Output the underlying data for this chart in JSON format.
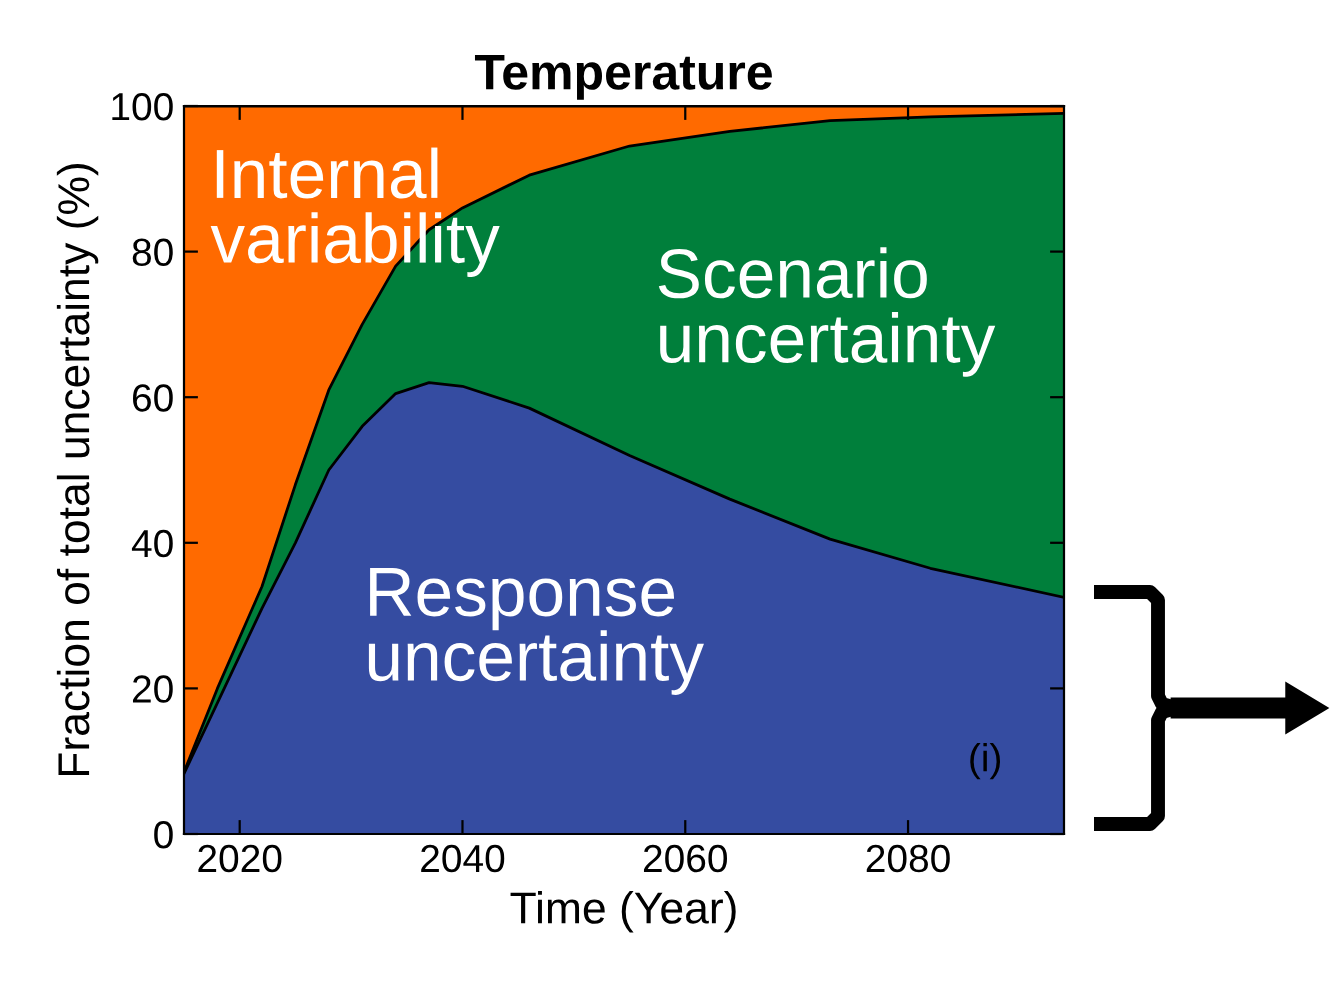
{
  "chart_data": {
    "type": "area",
    "title": "Temperature",
    "xlabel": "Time (Year)",
    "ylabel": "Fraction of total uncertainty (%)",
    "stacked": true,
    "grid": false,
    "legend": "top",
    "x": [
      2015,
      2018,
      2022,
      2025,
      2028,
      2031,
      2034,
      2037,
      2040,
      2046,
      2055,
      2064,
      2073,
      2082,
      2094
    ],
    "series": [
      {
        "name": "Response\nuncertainty",
        "color": "#354ca1",
        "values": [
          8.3,
          18,
          31,
          40,
          50,
          56,
          60.5,
          62,
          61.5,
          58.5,
          52,
          46,
          40.5,
          36.5,
          32.5
        ]
      },
      {
        "name": "Scenario\nuncertainty",
        "color": "#007f3b",
        "values": [
          0.2,
          2,
          3,
          8,
          11,
          14,
          17.5,
          21,
          24.5,
          32,
          42.5,
          50.5,
          57.5,
          62,
          66.5
        ]
      },
      {
        "name": "Internal\nvariability",
        "color": "#ff6a00",
        "values": [
          91.5,
          80,
          66,
          52,
          39,
          30,
          22,
          17,
          14,
          9.5,
          5.5,
          3.5,
          2,
          1.5,
          1
        ]
      }
    ],
    "xlim": [
      2015,
      2094
    ],
    "xticks": [
      2020,
      2040,
      2060,
      2080
    ],
    "ylim": [
      0,
      100
    ],
    "yticks": [
      0,
      20,
      40,
      60,
      80,
      100
    ],
    "annotations": [
      "(i)"
    ]
  }
}
